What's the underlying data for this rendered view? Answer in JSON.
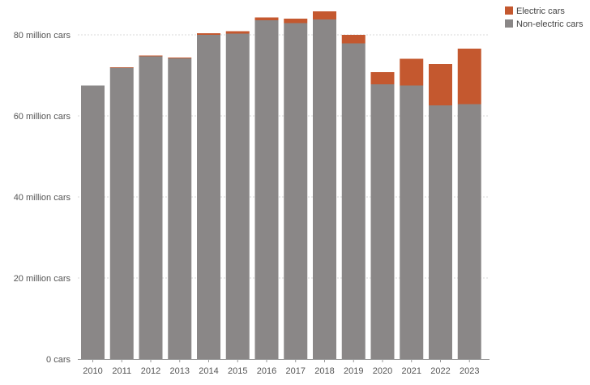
{
  "chart_data": {
    "type": "bar",
    "stacked": true,
    "categories": [
      "2010",
      "2011",
      "2012",
      "2013",
      "2014",
      "2015",
      "2016",
      "2017",
      "2018",
      "2019",
      "2020",
      "2021",
      "2022",
      "2023"
    ],
    "series": [
      {
        "name": "Non-electric cars",
        "color": "#8a8787",
        "values": [
          67.5,
          71.9,
          74.7,
          74.2,
          80.0,
          80.3,
          83.6,
          82.9,
          83.8,
          77.9,
          67.8,
          67.5,
          62.6,
          62.9
        ]
      },
      {
        "name": "Electric cars",
        "color": "#c4582f",
        "values": [
          0.0,
          0.1,
          0.2,
          0.2,
          0.4,
          0.6,
          0.7,
          1.1,
          2.0,
          2.1,
          3.0,
          6.6,
          10.2,
          13.7
        ]
      }
    ],
    "yticks": [
      {
        "value": 0,
        "label": "0 cars"
      },
      {
        "value": 20,
        "label": "20 million cars"
      },
      {
        "value": 40,
        "label": "40 million cars"
      },
      {
        "value": 60,
        "label": "60 million cars"
      },
      {
        "value": 80,
        "label": "80 million cars"
      }
    ],
    "ylim": [
      0,
      80
    ],
    "grid": true,
    "legend_position": "top-right"
  },
  "legend": {
    "items": [
      {
        "label": "Electric cars",
        "color": "#c4582f"
      },
      {
        "label": "Non-electric cars",
        "color": "#8a8787"
      }
    ]
  }
}
